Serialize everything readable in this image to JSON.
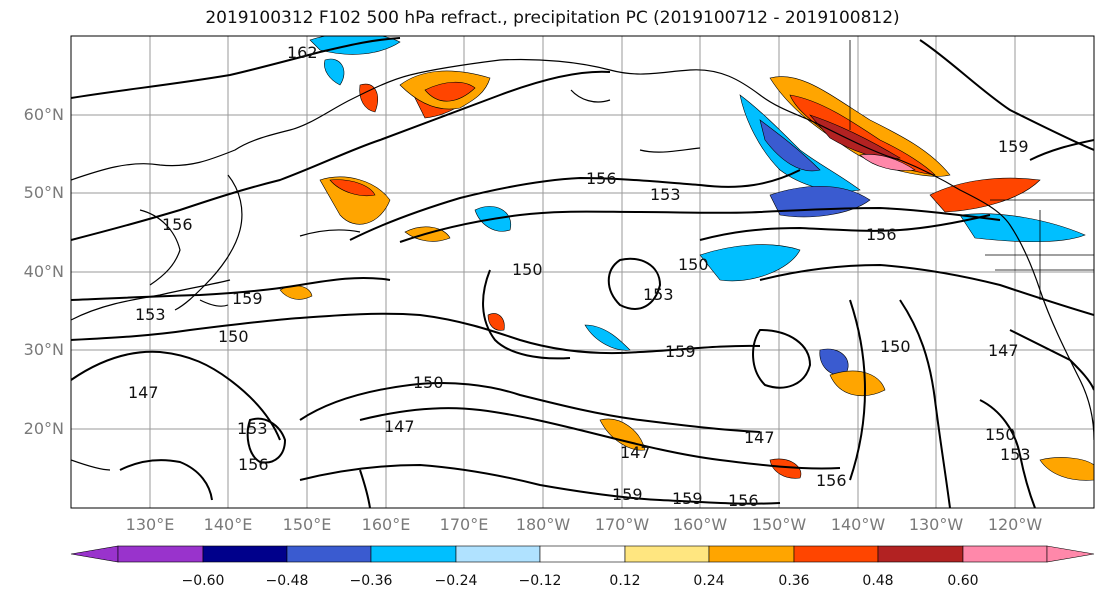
{
  "title": "2019100312 F102 500 hPa refract., precipitation PC (2019100712 - 2019100812)",
  "map": {
    "lat_labels": [
      "60°N",
      "50°N",
      "40°N",
      "30°N",
      "20°N"
    ],
    "lon_labels": [
      "130°E",
      "140°E",
      "150°E",
      "160°E",
      "170°E",
      "180°W",
      "170°W",
      "160°W",
      "150°W",
      "140°W",
      "130°W",
      "120°W"
    ],
    "contour_labels": [
      "162",
      "156",
      "153",
      "150",
      "156",
      "159",
      "150",
      "147",
      "153",
      "156",
      "150",
      "147",
      "153",
      "159",
      "156",
      "159",
      "159",
      "156",
      "147",
      "147",
      "150",
      "156",
      "150",
      "153",
      "147",
      "150",
      "153",
      "159"
    ]
  },
  "colorbar": {
    "ticks": [
      "−0.60",
      "−0.48",
      "−0.36",
      "−0.24",
      "−0.12",
      "0.12",
      "0.24",
      "0.36",
      "0.48",
      "0.60"
    ],
    "colors": [
      "#9933cc",
      "#00008b",
      "#3a5bd0",
      "#00bfff",
      "#b0e2ff",
      "#ffffff",
      "#ffe680",
      "#ffa500",
      "#ff4500",
      "#b22222",
      "#ff88aa",
      "#ff88aa"
    ]
  }
}
